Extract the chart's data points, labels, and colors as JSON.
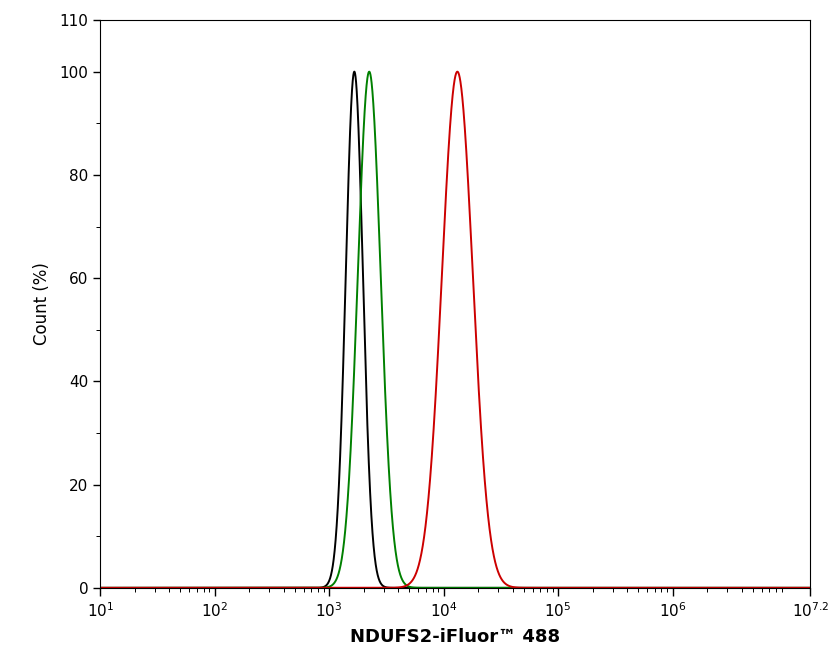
{
  "title": "",
  "xlabel": "NDUFS2-iFluor™ 488",
  "ylabel": "Count (%)",
  "xlim_log": [
    1,
    7.2
  ],
  "ylim": [
    0,
    110
  ],
  "yticks": [
    0,
    20,
    40,
    60,
    80,
    100,
    110
  ],
  "xtick_positions": [
    1,
    2,
    3,
    4,
    5,
    6,
    7.2
  ],
  "black_peak_log": 3.22,
  "black_sigma_log": 0.075,
  "green_peak_log": 3.35,
  "green_sigma_log": 0.1,
  "red_peak_log": 4.12,
  "red_sigma_log": 0.135,
  "black_color": "#000000",
  "green_color": "#008000",
  "red_color": "#cc0000",
  "linewidth": 1.4,
  "background_color": "#ffffff"
}
